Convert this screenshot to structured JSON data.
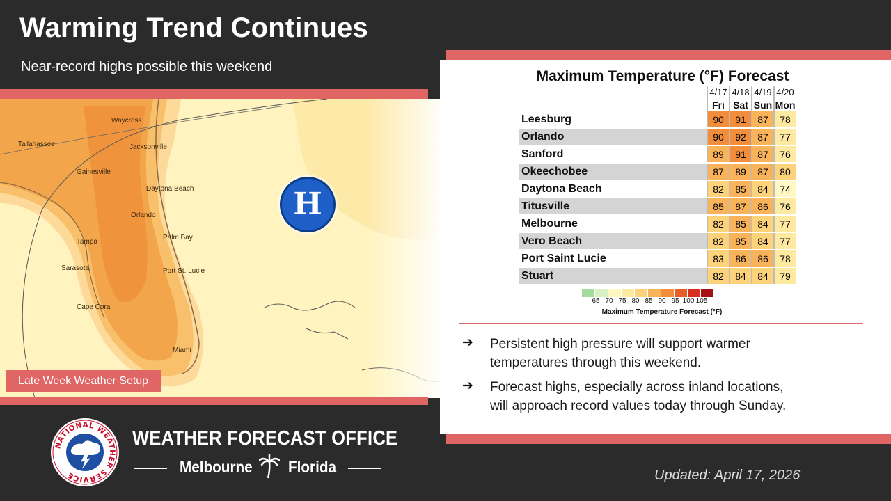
{
  "header": {
    "title": "Warming Trend Continues",
    "subtitle": "Near-record highs possible this weekend"
  },
  "map": {
    "caption": "Late Week Weather Setup",
    "high_pressure_label": "H",
    "city_labels": [
      "Tallahassee",
      "Jacksonville",
      "Gainesville",
      "Daytona Beach",
      "Orlando",
      "Tampa",
      "Palm Bay",
      "Sarasota",
      "Port St. Lucie",
      "Cape Coral",
      "Miami",
      "Waycross"
    ]
  },
  "forecast_table": {
    "title": "Maximum Temperature (°F) Forecast",
    "dates": [
      "4/17",
      "4/18",
      "4/19",
      "4/20"
    ],
    "days": [
      "Fri",
      "Sat",
      "Sun",
      "Mon"
    ],
    "rows": [
      {
        "city": "Leesburg",
        "temps": [
          90,
          91,
          87,
          78
        ]
      },
      {
        "city": "Orlando",
        "temps": [
          90,
          92,
          87,
          77
        ]
      },
      {
        "city": "Sanford",
        "temps": [
          89,
          91,
          87,
          76
        ]
      },
      {
        "city": "Okeechobee",
        "temps": [
          87,
          89,
          87,
          80
        ]
      },
      {
        "city": "Daytona Beach",
        "temps": [
          82,
          85,
          84,
          74
        ]
      },
      {
        "city": "Titusville",
        "temps": [
          85,
          87,
          86,
          76
        ]
      },
      {
        "city": "Melbourne",
        "temps": [
          82,
          85,
          84,
          77
        ]
      },
      {
        "city": "Vero Beach",
        "temps": [
          82,
          85,
          84,
          77
        ]
      },
      {
        "city": "Port Saint Lucie",
        "temps": [
          83,
          86,
          86,
          78
        ]
      },
      {
        "city": "Stuart",
        "temps": [
          82,
          84,
          84,
          79
        ]
      }
    ]
  },
  "legend": {
    "ticks": [
      "65",
      "70",
      "75",
      "80",
      "85",
      "90",
      "95",
      "100",
      "105"
    ],
    "title": "Maximum Temperature Forecast (°F)",
    "colors": [
      "#a6dba0",
      "#d9f0c5",
      "#fff8c4",
      "#fde9a0",
      "#fcd27a",
      "#f9b35a",
      "#f28d3c",
      "#e85c2a",
      "#d62f1f",
      "#a50f15"
    ]
  },
  "bullets": [
    {
      "line1": "Persistent high pressure will support warmer",
      "line2": "temperatures through this weekend."
    },
    {
      "line1": "Forecast highs, especially across inland locations,",
      "line2": "will approach record values today through Sunday."
    }
  ],
  "footer": {
    "office": "WEATHER FORECAST OFFICE",
    "city": "Melbourne",
    "state": "Florida",
    "logo_text": "NATIONAL WEATHER SERVICE",
    "updated": "Updated: April 17, 2026"
  },
  "colors": {
    "accent": "#e06666",
    "background": "#2b2b2b",
    "high_marker": "#1f5fc8"
  }
}
